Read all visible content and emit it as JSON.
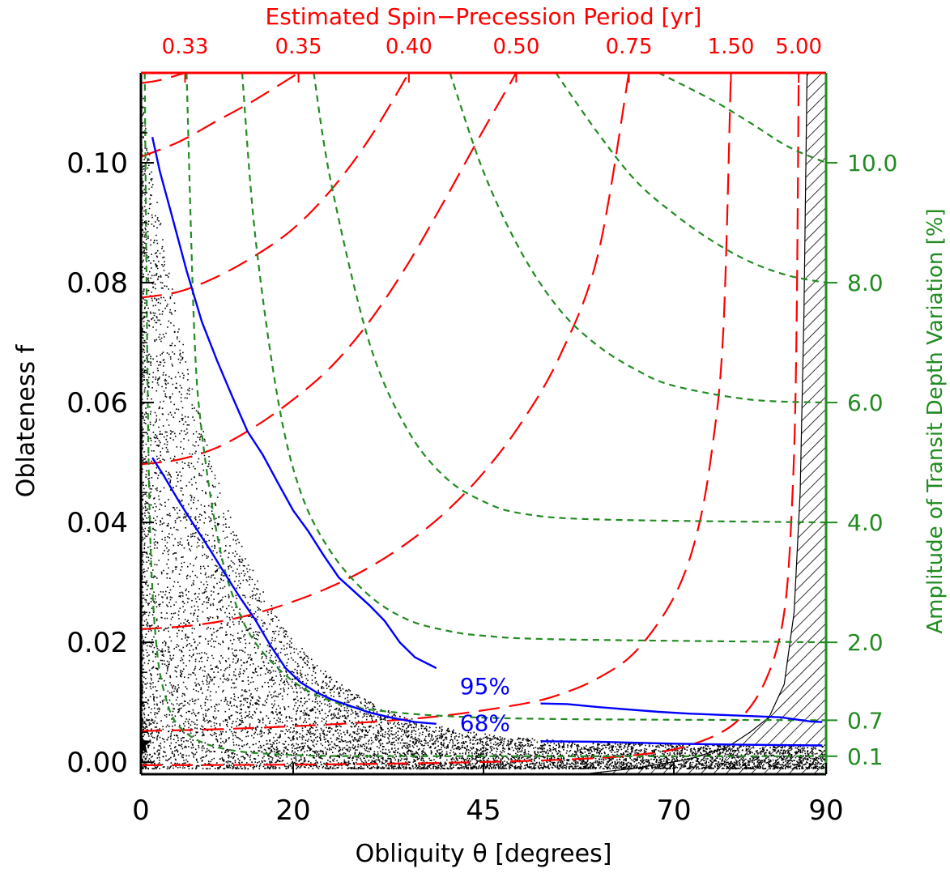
{
  "colors": {
    "red": "#ff0000",
    "green": "#228b22",
    "blue": "#0000ff",
    "black": "#000000",
    "hatch": "#000000"
  },
  "labels": {
    "x_title": "Obliquity θ [degrees]",
    "y_title": "Oblateness f",
    "top_title": "Estimated Spin−Precession Period [yr]",
    "right_title": "Amplitude of Transit Depth Variation [%]"
  },
  "chart_data": {
    "type": "scatter",
    "xlabel": "Obliquity θ [degrees]",
    "ylabel": "Oblateness f",
    "xlim": [
      0,
      90
    ],
    "ylim": [
      -0.002,
      0.115
    ],
    "x_ticks": [
      "0",
      "20",
      "45",
      "70",
      "90"
    ],
    "y_ticks": [
      "0.00",
      "0.02",
      "0.04",
      "0.06",
      "0.08",
      "0.10"
    ],
    "top_axis": {
      "title": "Estimated Spin−Precession Period [yr]",
      "color": "#ff0000",
      "ticks": [
        {
          "label": "0.33",
          "theta": 5.8
        },
        {
          "label": "0.35",
          "theta": 20.7
        },
        {
          "label": "0.40",
          "theta": 35.2
        },
        {
          "label": "0.50",
          "theta": 49.3
        },
        {
          "label": "0.75",
          "theta": 64.1
        },
        {
          "label": "1.50",
          "theta": 77.5
        },
        {
          "label": "5.00",
          "theta": 86.4
        }
      ]
    },
    "right_axis": {
      "title": "Amplitude of Transit Depth Variation [%]",
      "color": "#228b22",
      "ticks": [
        {
          "label": "10.0",
          "f": 0.1
        },
        {
          "label": "8.0",
          "f": 0.08
        },
        {
          "label": "6.0",
          "f": 0.06
        },
        {
          "label": "4.0",
          "f": 0.04
        },
        {
          "label": "2.0",
          "f": 0.02
        },
        {
          "label": "0.7",
          "f": 0.007
        },
        {
          "label": "0.1",
          "f": 0.001
        }
      ]
    },
    "precession_contours": [
      {
        "label": "0.33",
        "points": [
          [
            0,
            0.1133
          ],
          [
            2.5,
            0.1138
          ],
          [
            5.8,
            0.115
          ]
        ]
      },
      {
        "label": "0.35",
        "points": [
          [
            0,
            0.101
          ],
          [
            5,
            0.1035
          ],
          [
            10,
            0.107
          ],
          [
            15,
            0.1105
          ],
          [
            20.7,
            0.115
          ]
        ]
      },
      {
        "label": "0.40",
        "points": [
          [
            0,
            0.0775
          ],
          [
            5,
            0.0785
          ],
          [
            10,
            0.081
          ],
          [
            15,
            0.0845
          ],
          [
            20,
            0.089
          ],
          [
            25,
            0.0955
          ],
          [
            30,
            0.104
          ],
          [
            35.2,
            0.115
          ]
        ]
      },
      {
        "label": "0.50",
        "points": [
          [
            0,
            0.0497
          ],
          [
            5,
            0.0505
          ],
          [
            10,
            0.0525
          ],
          [
            15,
            0.056
          ],
          [
            20,
            0.0605
          ],
          [
            25,
            0.066
          ],
          [
            30,
            0.0735
          ],
          [
            35,
            0.083
          ],
          [
            40,
            0.094
          ],
          [
            45,
            0.1055
          ],
          [
            49.3,
            0.115
          ]
        ]
      },
      {
        "label": "0.75",
        "points": [
          [
            0,
            0.0222
          ],
          [
            5,
            0.0226
          ],
          [
            10,
            0.0234
          ],
          [
            15,
            0.0248
          ],
          [
            20,
            0.0268
          ],
          [
            25,
            0.0293
          ],
          [
            30,
            0.0325
          ],
          [
            35,
            0.0366
          ],
          [
            40,
            0.0417
          ],
          [
            45,
            0.0483
          ],
          [
            50,
            0.0567
          ],
          [
            55,
            0.0677
          ],
          [
            60,
            0.0845
          ],
          [
            64.1,
            0.115
          ]
        ]
      },
      {
        "label": "1.50",
        "points": [
          [
            0,
            0.0052
          ],
          [
            10,
            0.0055
          ],
          [
            20,
            0.006
          ],
          [
            30,
            0.0067
          ],
          [
            40,
            0.0078
          ],
          [
            50,
            0.0097
          ],
          [
            55,
            0.0113
          ],
          [
            60,
            0.014
          ],
          [
            65,
            0.0185
          ],
          [
            70,
            0.0275
          ],
          [
            73,
            0.038
          ],
          [
            75,
            0.052
          ],
          [
            76.5,
            0.072
          ],
          [
            77.5,
            0.115
          ]
        ]
      },
      {
        "label": "5.00",
        "points": [
          [
            0,
            -0.0005
          ],
          [
            20,
            -0.0004
          ],
          [
            40,
            -0.0001
          ],
          [
            55,
            0.0004
          ],
          [
            65,
            0.0012
          ],
          [
            72,
            0.0028
          ],
          [
            78,
            0.0065
          ],
          [
            82,
            0.0135
          ],
          [
            84.5,
            0.025
          ],
          [
            85.6,
            0.045
          ],
          [
            86.1,
            0.07
          ],
          [
            86.4,
            0.115
          ]
        ]
      }
    ],
    "amplitude_contours": [
      {
        "label": "10.0",
        "points": [
          [
            68,
            0.115
          ],
          [
            75,
            0.1105
          ],
          [
            80,
            0.1067
          ],
          [
            85,
            0.1027
          ],
          [
            90,
            0.1
          ]
        ]
      },
      {
        "label": "8.0",
        "points": [
          [
            54.5,
            0.115
          ],
          [
            60,
            0.105
          ],
          [
            65,
            0.097
          ],
          [
            70,
            0.0915
          ],
          [
            75,
            0.087
          ],
          [
            80,
            0.0835
          ],
          [
            85,
            0.0812
          ],
          [
            90,
            0.08
          ]
        ]
      },
      {
        "label": "6.0",
        "points": [
          [
            40.6,
            0.115
          ],
          [
            45,
            0.0985
          ],
          [
            50,
            0.085
          ],
          [
            55,
            0.0755
          ],
          [
            60,
            0.0695
          ],
          [
            65,
            0.0655
          ],
          [
            70,
            0.0628
          ],
          [
            80,
            0.0605
          ],
          [
            90,
            0.06
          ]
        ]
      },
      {
        "label": "4.0",
        "points": [
          [
            22.7,
            0.115
          ],
          [
            25,
            0.0965
          ],
          [
            30,
            0.07
          ],
          [
            35,
            0.0555
          ],
          [
            40,
            0.0475
          ],
          [
            45,
            0.0435
          ],
          [
            50,
            0.0415
          ],
          [
            60,
            0.0405
          ],
          [
            90,
            0.04
          ]
        ]
      },
      {
        "label": "2.0",
        "points": [
          [
            13.3,
            0.115
          ],
          [
            15,
            0.088
          ],
          [
            18,
            0.0605
          ],
          [
            21,
            0.045
          ],
          [
            25,
            0.035
          ],
          [
            30,
            0.0278
          ],
          [
            35,
            0.0238
          ],
          [
            40,
            0.022
          ],
          [
            45,
            0.0211
          ],
          [
            55,
            0.0205
          ],
          [
            90,
            0.02
          ]
        ]
      },
      {
        "label": "0.7",
        "points": [
          [
            6,
            0.115
          ],
          [
            7,
            0.072
          ],
          [
            8,
            0.055
          ],
          [
            10,
            0.038
          ],
          [
            12,
            0.028
          ],
          [
            15,
            0.02
          ],
          [
            20,
            0.0135
          ],
          [
            25,
            0.0102
          ],
          [
            30,
            0.0088
          ],
          [
            40,
            0.0077
          ],
          [
            55,
            0.0072
          ],
          [
            90,
            0.007
          ]
        ]
      },
      {
        "label": "0.1",
        "points": [
          [
            0.5,
            0.115
          ],
          [
            0.9,
            0.06
          ],
          [
            1.3,
            0.035
          ],
          [
            2,
            0.02
          ],
          [
            3,
            0.012
          ],
          [
            5,
            0.006
          ],
          [
            10,
            0.0025
          ],
          [
            20,
            0.0012
          ],
          [
            40,
            0.001
          ],
          [
            90,
            0.001
          ]
        ]
      }
    ],
    "confidence_contours": [
      {
        "label": "95%",
        "segments": [
          [
            [
              1.5,
              0.1043
            ],
            [
              2.5,
              0.0985
            ],
            [
              4,
              0.0915
            ],
            [
              6,
              0.082
            ],
            [
              8,
              0.0735
            ],
            [
              10,
              0.067
            ],
            [
              12,
              0.061
            ],
            [
              14,
              0.0552
            ],
            [
              16,
              0.0513
            ],
            [
              18,
              0.0466
            ],
            [
              20,
              0.042
            ],
            [
              22,
              0.0385
            ],
            [
              24,
              0.0345
            ],
            [
              26,
              0.0308
            ],
            [
              28,
              0.0285
            ],
            [
              30,
              0.0262
            ],
            [
              32,
              0.0236
            ],
            [
              34,
              0.02
            ],
            [
              36,
              0.0175
            ],
            [
              38.8,
              0.0157
            ]
          ],
          [
            [
              52.5,
              0.0098
            ],
            [
              56,
              0.0097
            ],
            [
              60,
              0.0092
            ],
            [
              64,
              0.0088
            ],
            [
              68,
              0.0084
            ],
            [
              72,
              0.0081
            ],
            [
              76,
              0.0079
            ],
            [
              80,
              0.0077
            ],
            [
              84,
              0.0075
            ],
            [
              88,
              0.0068
            ],
            [
              89.5,
              0.0067
            ]
          ]
        ]
      },
      {
        "label": "68%",
        "segments": [
          [
            [
              1.5,
              0.0508
            ],
            [
              3,
              0.0478
            ],
            [
              5,
              0.0435
            ],
            [
              7,
              0.0395
            ],
            [
              9,
              0.0356
            ],
            [
              11,
              0.0315
            ],
            [
              13,
              0.0275
            ],
            [
              15,
              0.0238
            ],
            [
              17,
              0.0195
            ],
            [
              19,
              0.0157
            ],
            [
              21,
              0.0133
            ],
            [
              23,
              0.0117
            ],
            [
              25,
              0.0105
            ],
            [
              27,
              0.0096
            ],
            [
              30,
              0.0083
            ],
            [
              33,
              0.0074
            ],
            [
              36,
              0.0067
            ],
            [
              38.8,
              0.0064
            ]
          ],
          [
            [
              52.5,
              0.0035
            ],
            [
              60,
              0.0034
            ],
            [
              70,
              0.0031
            ],
            [
              80,
              0.0029
            ],
            [
              89.5,
              0.0028
            ]
          ]
        ]
      }
    ],
    "confidence_labels": [
      {
        "text": "95%",
        "x": 45.2,
        "y": 0.0114
      },
      {
        "text": "68%",
        "x": 45.2,
        "y": 0.0052
      }
    ],
    "excluded_region": {
      "boundary": [
        [
          58,
          -0.002
        ],
        [
          65,
          -0.001
        ],
        [
          72,
          0.0005
        ],
        [
          77,
          0.0025
        ],
        [
          80,
          0.005
        ],
        [
          82.5,
          0.0075
        ],
        [
          84.5,
          0.013
        ],
        [
          85.8,
          0.025
        ],
        [
          86.6,
          0.045
        ],
        [
          87.1,
          0.075
        ],
        [
          87.5,
          0.115
        ]
      ]
    },
    "scatter": {
      "description_count": 9000,
      "marker": "dot",
      "color": "#000000"
    },
    "star_marker": {
      "x": 0,
      "y": 0.003
    }
  }
}
